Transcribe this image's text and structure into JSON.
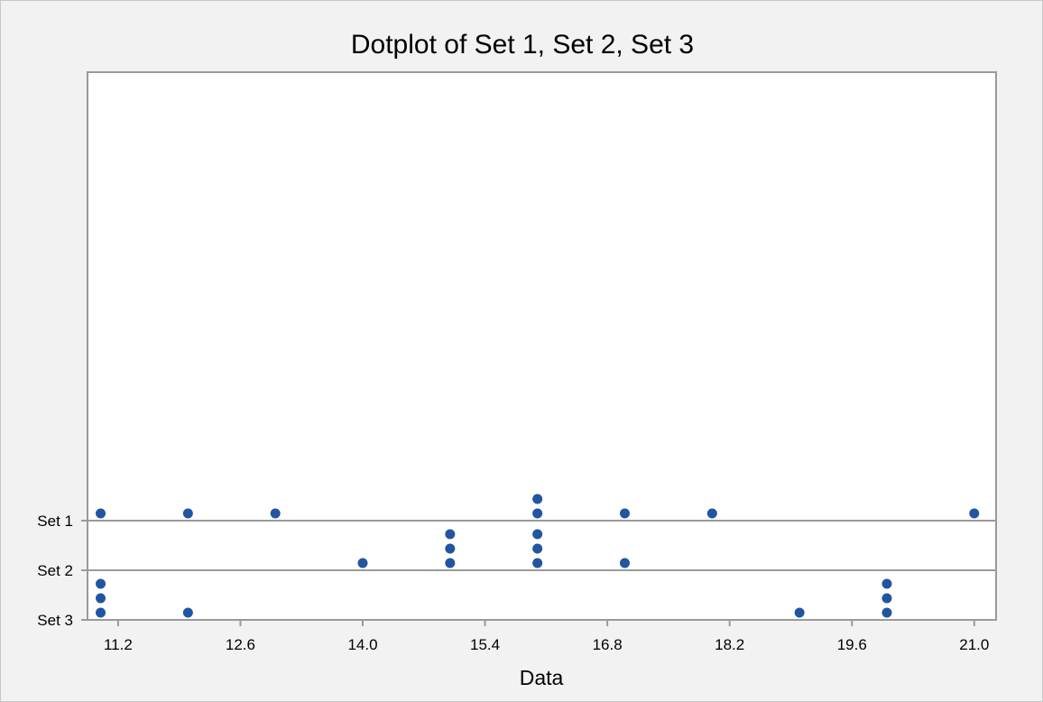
{
  "chart_data": {
    "type": "scatter",
    "title": "Dotplot of Set 1, Set 2, Set 3",
    "xlabel": "Data",
    "ylabel": "",
    "xlim": [
      10.85,
      21.25
    ],
    "xticks": [
      11.2,
      12.6,
      14.0,
      15.4,
      16.8,
      18.2,
      19.6,
      21.0
    ],
    "xtick_labels": [
      "11.2",
      "12.6",
      "14.0",
      "15.4",
      "16.8",
      "18.2",
      "19.6",
      "21.0"
    ],
    "grid": false,
    "legend": "none",
    "dot_color": "#2255a0",
    "series": [
      {
        "name": "Set 1",
        "values": [
          11.0,
          12.0,
          13.0,
          16.0,
          16.0,
          17.0,
          18.0,
          21.0
        ]
      },
      {
        "name": "Set 2",
        "values": [
          14.0,
          15.0,
          15.0,
          15.0,
          16.0,
          16.0,
          16.0,
          17.0
        ]
      },
      {
        "name": "Set 3",
        "values": [
          11.0,
          11.0,
          11.0,
          12.0,
          19.0,
          20.0,
          20.0,
          20.0
        ]
      }
    ]
  }
}
